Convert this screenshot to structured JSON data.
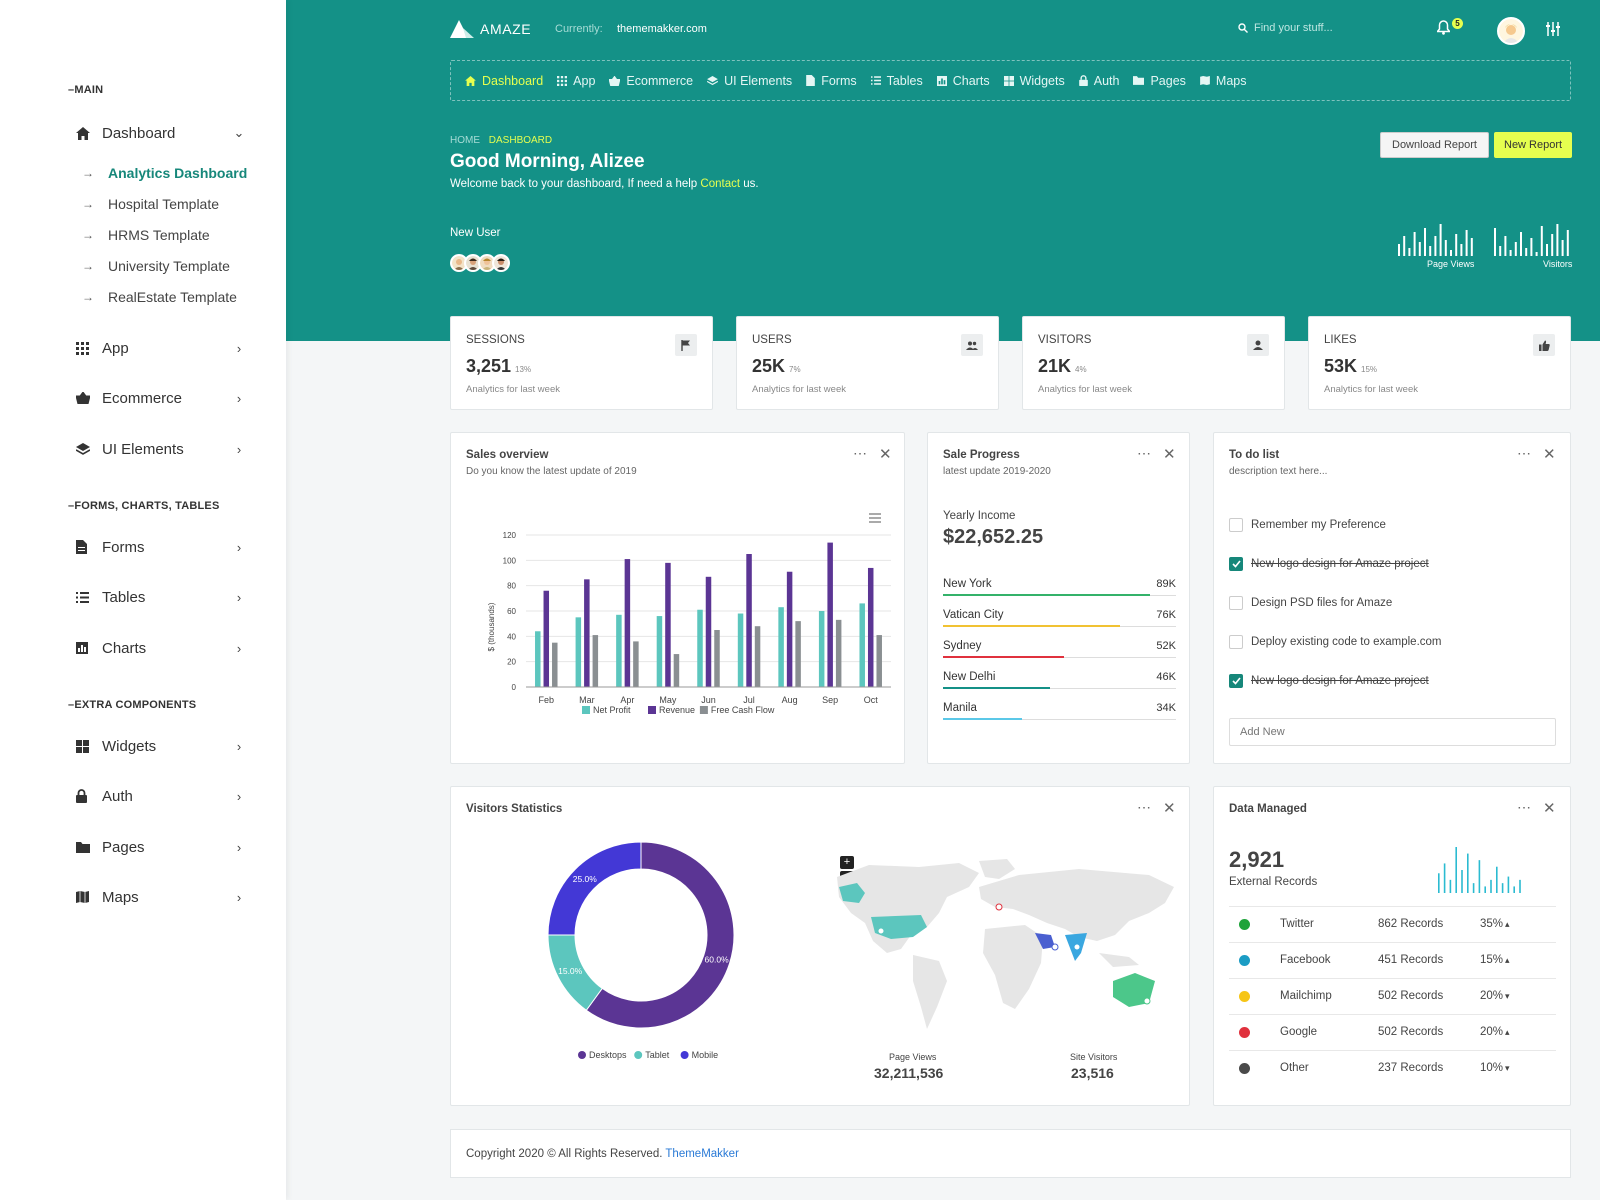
{
  "sidebar": {
    "sections": [
      "MAIN",
      "FORMS, CHARTS, TABLES",
      "EXTRA COMPONENTS"
    ],
    "dashboard_label": "Dashboard",
    "sub_items": [
      "Analytics Dashboard",
      "Hospital Template",
      "HRMS Template",
      "University Template",
      "RealEstate Template"
    ],
    "items": [
      "App",
      "Ecommerce",
      "UI Elements",
      "Forms",
      "Tables",
      "Charts",
      "Widgets",
      "Auth",
      "Pages",
      "Maps"
    ]
  },
  "header": {
    "logo": "AMAZE",
    "currently_label": "Currently:",
    "site": "thememakker.com",
    "search_placeholder": "Find your stuff...",
    "notification_count": "5"
  },
  "nav": [
    "Dashboard",
    "App",
    "Ecommerce",
    "UI Elements",
    "Forms",
    "Tables",
    "Charts",
    "Widgets",
    "Auth",
    "Pages",
    "Maps"
  ],
  "hero": {
    "crumb_home": "HOME",
    "crumb_current": "DASHBOARD",
    "greeting": "Good Morning, Alizee",
    "welcome_pre": "Welcome back to your dashboard, If need a help",
    "welcome_link": "Contact",
    "welcome_post": "us.",
    "new_user": "New User",
    "download_btn": "Download Report",
    "new_btn": "New Report",
    "spark1_label": "Page Views",
    "spark2_label": "Visitors",
    "spark1": [
      6,
      10,
      4,
      12,
      7,
      14,
      5,
      10,
      16,
      8,
      3,
      11,
      6,
      13,
      9
    ],
    "spark2": [
      14,
      5,
      10,
      3,
      7,
      12,
      4,
      9,
      2,
      15,
      6,
      11,
      16,
      8,
      13
    ]
  },
  "stats": [
    {
      "title": "SESSIONS",
      "value": "3,251",
      "pct": "13%",
      "sub": "Analytics for last week",
      "icon": "flag-icon"
    },
    {
      "title": "USERS",
      "value": "25K",
      "pct": "7%",
      "sub": "Analytics for last week",
      "icon": "users-icon"
    },
    {
      "title": "VISITORS",
      "value": "21K",
      "pct": "4%",
      "sub": "Analytics for last week",
      "icon": "user-icon"
    },
    {
      "title": "LIKES",
      "value": "53K",
      "pct": "15%",
      "sub": "Analytics for last week",
      "icon": "thumbs-up-icon"
    }
  ],
  "sales": {
    "title": "Sales overview",
    "subtitle": "Do you know the latest update of 2019"
  },
  "chart_data": [
    {
      "type": "bar",
      "categories": [
        "Feb",
        "Mar",
        "Apr",
        "May",
        "Jun",
        "Jul",
        "Aug",
        "Sep",
        "Oct"
      ],
      "series": [
        {
          "name": "Net Profit",
          "values": [
            44,
            55,
            57,
            56,
            61,
            58,
            63,
            60,
            66
          ],
          "color": "#5cc6be"
        },
        {
          "name": "Revenue",
          "values": [
            76,
            85,
            101,
            98,
            87,
            105,
            91,
            114,
            94
          ],
          "color": "#5b3594"
        },
        {
          "name": "Free Cash Flow",
          "values": [
            35,
            41,
            36,
            26,
            45,
            48,
            52,
            53,
            41
          ],
          "color": "#8a8f92"
        }
      ],
      "ylabel": "$ (thousands)",
      "yticks": [
        0,
        20,
        40,
        60,
        80,
        100,
        120
      ],
      "ylim": [
        0,
        120
      ],
      "legend": "bottom"
    },
    {
      "type": "pie",
      "categories": [
        "Desktops",
        "Tablet",
        "Mobile"
      ],
      "values": [
        60.0,
        15.0,
        25.0
      ],
      "labels": [
        "60.0%",
        "15.0%",
        "25.0%"
      ],
      "colors": [
        "#5b3594",
        "#5cc6be",
        "#4338d6"
      ],
      "legend": "bottom"
    }
  ],
  "sale_progress": {
    "title": "Sale Progress",
    "subtitle": "latest update 2019-2020",
    "yearly_label": "Yearly Income",
    "yearly_value": "$22,652.25",
    "rows": [
      {
        "city": "New York",
        "value": "89K",
        "pct": 89,
        "color": "#34b26a"
      },
      {
        "city": "Vatican City",
        "value": "76K",
        "pct": 76,
        "color": "#f1c232"
      },
      {
        "city": "Sydney",
        "value": "52K",
        "pct": 52,
        "color": "#e0313d"
      },
      {
        "city": "New Delhi",
        "value": "46K",
        "pct": 46,
        "color": "#149187"
      },
      {
        "city": "Manila",
        "value": "34K",
        "pct": 34,
        "color": "#5bc8e8"
      }
    ]
  },
  "todo": {
    "title": "To do list",
    "subtitle": "description text here...",
    "items": [
      {
        "text": "Remember my Preference",
        "done": false
      },
      {
        "text": "New logo design for Amaze project",
        "done": true
      },
      {
        "text": "Design PSD files for Amaze",
        "done": false
      },
      {
        "text": "Deploy existing code to example.com",
        "done": false
      },
      {
        "text": "New logo design for Amaze project",
        "done": true
      }
    ],
    "add_placeholder": "Add New"
  },
  "visitors": {
    "title": "Visitors Statistics",
    "page_views_label": "Page Views",
    "page_views_value": "32,211,536",
    "site_visitors_label": "Site Visitors",
    "site_visitors_value": "23,516"
  },
  "data_managed": {
    "title": "Data Managed",
    "value": "2,921",
    "sub": "External Records",
    "spark": [
      6,
      9,
      4,
      14,
      7,
      12,
      3,
      10,
      2,
      4,
      8,
      3,
      5,
      2,
      4
    ],
    "rows": [
      {
        "name": "Twitter",
        "records": "862 Records",
        "pct": "35%",
        "trend": "up",
        "color": "#1ea33a"
      },
      {
        "name": "Facebook",
        "records": "451 Records",
        "pct": "15%",
        "trend": "up",
        "color": "#1b9cc4"
      },
      {
        "name": "Mailchimp",
        "records": "502 Records",
        "pct": "20%",
        "trend": "down",
        "color": "#f6c516"
      },
      {
        "name": "Google",
        "records": "502 Records",
        "pct": "20%",
        "trend": "up",
        "color": "#e0313d"
      },
      {
        "name": "Other",
        "records": "237 Records",
        "pct": "10%",
        "trend": "down",
        "color": "#4a4a4a"
      }
    ]
  },
  "footer": {
    "text": "Copyright 2020 © All Rights Reserved.",
    "link": "ThemeMakker"
  }
}
